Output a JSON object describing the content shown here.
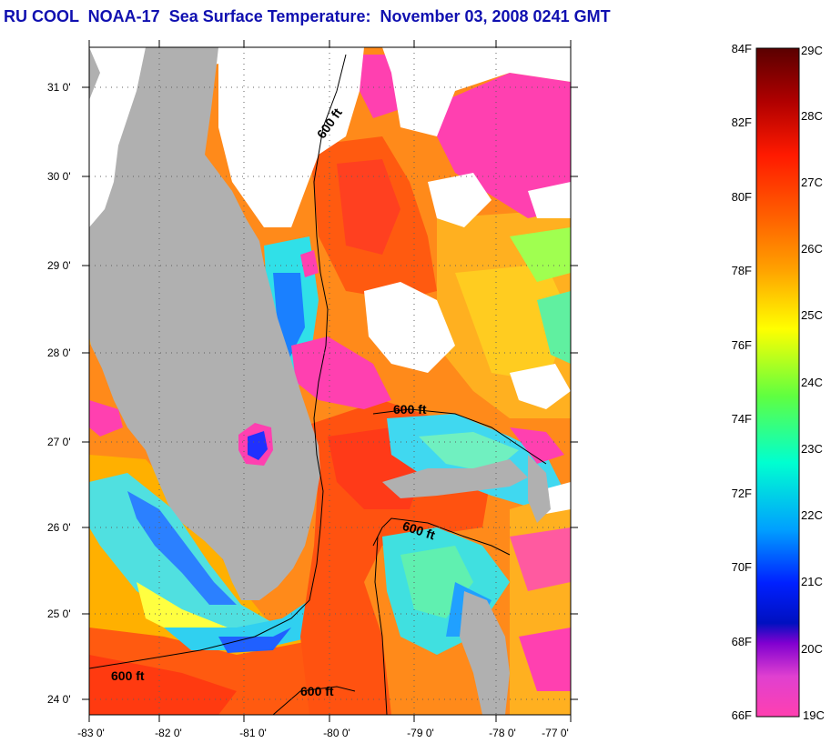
{
  "title": "RU COOL  NOAA-17  Sea Surface Temperature:  November 03, 2008 0241 GMT",
  "map": {
    "lat_ticks": [
      "31 0'",
      "30 0'",
      "29 0'",
      "28 0'",
      "27 0'",
      "26 0'",
      "25 0'",
      "24 0'"
    ],
    "lon_ticks": [
      "-83 0'",
      "-82 0'",
      "-81 0'",
      "-80 0'",
      "-79 0'",
      "-78 0'",
      "-77 0'"
    ],
    "isobath_labels": [
      "600 ft",
      "600 ft",
      "600 ft",
      "600 ft",
      "600 ft"
    ],
    "land_color": "#b0b0b0",
    "cloud_color": "#ffffff"
  },
  "colorbar": {
    "fahrenheit_labels": [
      "84F",
      "82F",
      "80F",
      "78F",
      "76F",
      "74F",
      "72F",
      "70F",
      "68F",
      "66F"
    ],
    "celsius_labels": [
      "29C",
      "28C",
      "27C",
      "26C",
      "25C",
      "24C",
      "23C",
      "22C",
      "21C",
      "20C",
      "19C"
    ],
    "colors": [
      "#8b0000",
      "#e00000",
      "#ff3300",
      "#ff7700",
      "#ffcc00",
      "#ffff00",
      "#a0ff40",
      "#00e0a0",
      "#00e0ff",
      "#0090ff",
      "#0030ff",
      "#6000d0",
      "#c030d0",
      "#ff40c0"
    ]
  }
}
